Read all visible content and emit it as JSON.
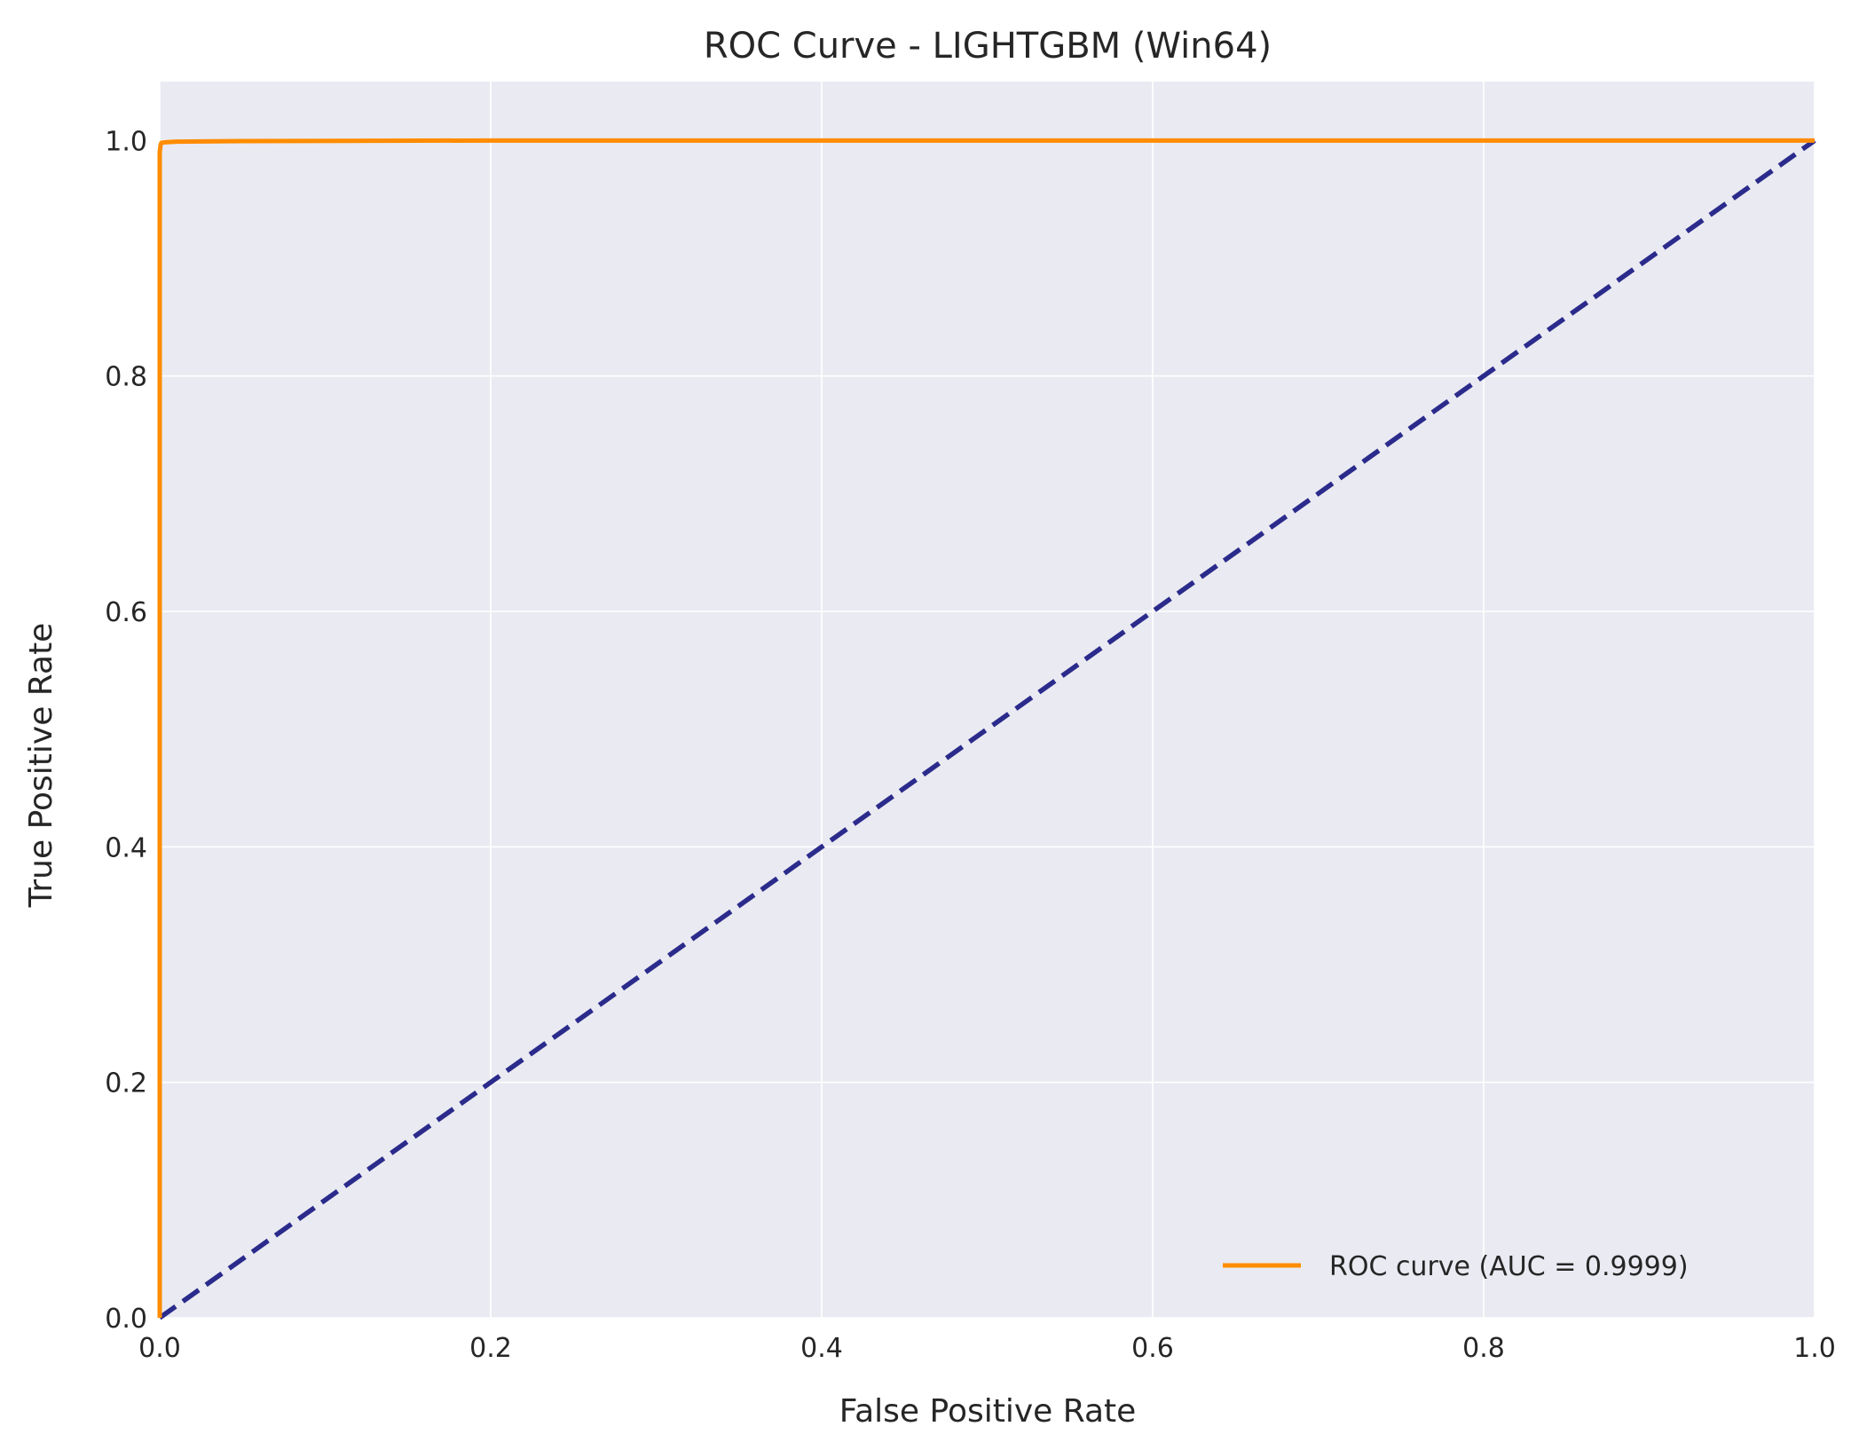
{
  "chart_data": {
    "type": "line",
    "title": "ROC Curve - LIGHTGBM (Win64)",
    "xlabel": "False Positive Rate",
    "ylabel": "True Positive Rate",
    "xlim": [
      0.0,
      1.0
    ],
    "ylim": [
      0.0,
      1.05
    ],
    "xticks": [
      0.0,
      0.2,
      0.4,
      0.6,
      0.8,
      1.0
    ],
    "yticks": [
      0.0,
      0.2,
      0.4,
      0.6,
      0.8,
      1.0
    ],
    "xtick_labels": [
      "0.0",
      "0.2",
      "0.4",
      "0.6",
      "0.8",
      "1.0"
    ],
    "ytick_labels": [
      "0.0",
      "0.2",
      "0.4",
      "0.6",
      "0.8",
      "1.0"
    ],
    "grid": true,
    "legend_position": "lower-right",
    "series": [
      {
        "name": "ROC curve (AUC = 0.9999)",
        "color": "#ff8c00",
        "style": "solid",
        "in_legend": true,
        "x": [
          0.0,
          0.0,
          0.0005,
          0.001,
          0.003,
          0.01,
          0.05,
          0.2,
          1.0
        ],
        "y": [
          0.0,
          0.99,
          0.996,
          0.998,
          0.9985,
          0.999,
          0.9995,
          1.0,
          1.0
        ]
      },
      {
        "name": "",
        "color": "#2b2b8c",
        "style": "dashed",
        "in_legend": false,
        "x": [
          0.0,
          1.0
        ],
        "y": [
          0.0,
          1.0
        ]
      }
    ]
  },
  "colors": {
    "plot_background": "#eaeaf2",
    "grid": "#ffffff",
    "text": "#262626"
  }
}
